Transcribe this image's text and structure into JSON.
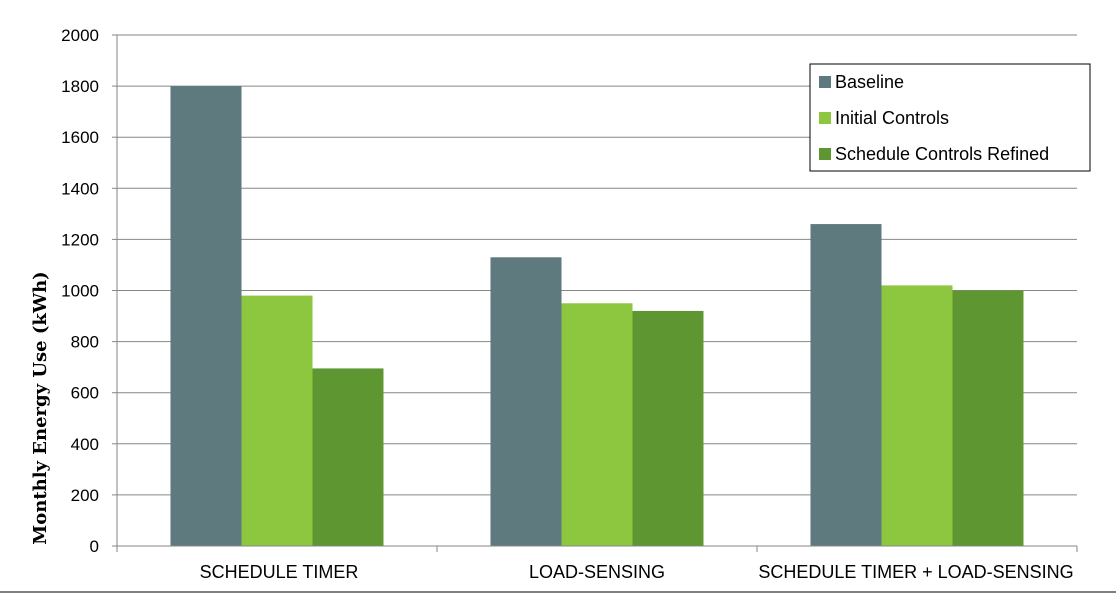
{
  "chart_data": {
    "type": "bar",
    "title": "",
    "xlabel": "",
    "ylabel": "Monthly Energy Use (kWh)",
    "ylim": [
      0,
      2000
    ],
    "yticks": [
      0,
      200,
      400,
      600,
      800,
      1000,
      1200,
      1400,
      1600,
      1800,
      2000
    ],
    "grid": true,
    "legend_position": "top-right",
    "categories": [
      "SCHEDULE TIMER",
      "LOAD-SENSING",
      "SCHEDULE TIMER + LOAD-SENSING"
    ],
    "series": [
      {
        "name": "Baseline",
        "color": "#5f7a7f",
        "values": [
          1800,
          1130,
          1260
        ]
      },
      {
        "name": "Initial Controls",
        "color": "#8dc63f",
        "values": [
          980,
          950,
          1020
        ]
      },
      {
        "name": "Schedule Controls Refined",
        "color": "#5e9732",
        "values": [
          695,
          920,
          1000
        ]
      }
    ]
  }
}
